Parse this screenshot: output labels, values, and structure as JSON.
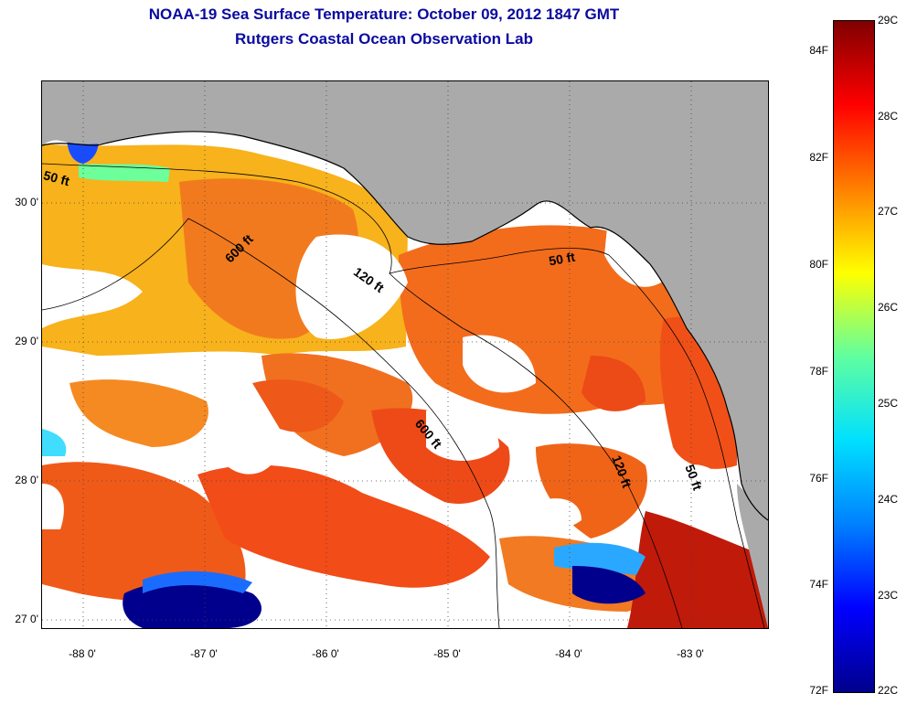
{
  "title": "NOAA-19 Sea Surface Temperature:  October 09, 2012 1847 GMT",
  "subtitle": "Rutgers Coastal Ocean Observation Lab",
  "map": {
    "lat_ticks": [
      "30 0'",
      "29 0'",
      "28 0'",
      "27 0'"
    ],
    "lon_ticks": [
      "-88 0'",
      "-87 0'",
      "-86 0'",
      "-85 0'",
      "-84 0'",
      "-83 0'"
    ],
    "contour_labels": [
      "50 ft",
      "600 ft",
      "120 ft",
      "50 ft",
      "600 ft",
      "120 ft",
      "50 ft"
    ],
    "colors": {
      "land": "#aaaaaa",
      "cloud": "#ffffff",
      "warm_water": "#f06a1a",
      "hot_water": "#cc1808",
      "cool_water": "#00008c"
    }
  },
  "colorbar": {
    "fahrenheit_ticks": [
      "84F",
      "82F",
      "80F",
      "78F",
      "76F",
      "74F",
      "72F"
    ],
    "celsius_ticks": [
      "29C",
      "28C",
      "27C",
      "26C",
      "25C",
      "24C",
      "23C",
      "22C"
    ],
    "range_celsius": [
      22,
      29
    ],
    "gradient_colors": [
      "#00008c",
      "#0000ff",
      "#0080ff",
      "#00e0ff",
      "#60ff9f",
      "#ffff00",
      "#ff8000",
      "#ff0000",
      "#800000"
    ]
  }
}
